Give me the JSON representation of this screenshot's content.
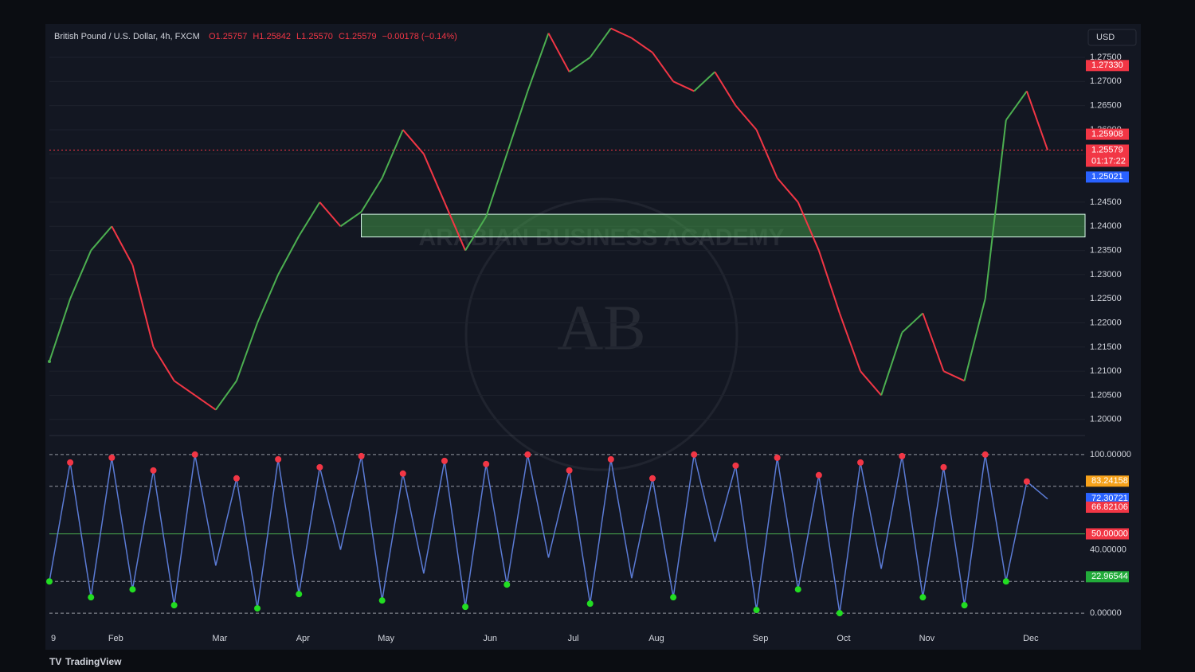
{
  "chart_data": [
    {
      "type": "line",
      "title": "British Pound / U.S. Dollar, 4h, FXCM",
      "ohlc": [
        "O1.25757",
        "H1.25842",
        "L1.25570",
        "C1.25579",
        "−0.00178 (−0.14%)"
      ],
      "currency": "USD",
      "categories": [
        "9",
        null,
        null,
        "Feb",
        null,
        null,
        null,
        null,
        "Mar",
        null,
        null,
        null,
        "Apr",
        null,
        null,
        null,
        "May",
        null,
        null,
        null,
        null,
        "Jun",
        null,
        null,
        null,
        "Jul",
        null,
        null,
        null,
        "Aug",
        null,
        null,
        null,
        null,
        "Sep",
        null,
        null,
        null,
        "Oct",
        null,
        null,
        null,
        "Nov",
        null,
        null,
        null,
        null,
        "Dec",
        null
      ],
      "values": [
        1.212,
        1.225,
        1.235,
        1.24,
        1.232,
        1.215,
        1.208,
        1.205,
        1.202,
        1.208,
        1.22,
        1.23,
        1.238,
        1.245,
        1.24,
        1.243,
        1.25,
        1.26,
        1.255,
        1.245,
        1.235,
        1.242,
        1.255,
        1.268,
        1.28,
        1.272,
        1.275,
        1.281,
        1.279,
        1.276,
        1.27,
        1.268,
        1.272,
        1.265,
        1.26,
        1.25,
        1.245,
        1.235,
        1.222,
        1.21,
        1.205,
        1.218,
        1.222,
        1.21,
        1.208,
        1.225,
        1.262,
        1.268,
        1.2558
      ],
      "up_color": "#4caf50",
      "down_color": "#f23645",
      "ylim": [
        1.197,
        1.2816
      ],
      "yticks": [
        {
          "value": 1.2,
          "label": "1.20000"
        },
        {
          "value": 1.205,
          "label": "1.20500"
        },
        {
          "value": 1.21,
          "label": "1.21000"
        },
        {
          "value": 1.215,
          "label": "1.21500"
        },
        {
          "value": 1.22,
          "label": "1.22000"
        },
        {
          "value": 1.225,
          "label": "1.22500"
        },
        {
          "value": 1.23,
          "label": "1.23000"
        },
        {
          "value": 1.235,
          "label": "1.23500"
        },
        {
          "value": 1.24,
          "label": "1.24000"
        },
        {
          "value": 1.245,
          "label": "1.24500"
        },
        {
          "value": 1.25,
          "label": "1.25000"
        },
        {
          "value": 1.255,
          "label": "1.25500"
        },
        {
          "value": 1.26,
          "label": "1.26000"
        },
        {
          "value": 1.265,
          "label": "1.26500"
        },
        {
          "value": 1.27,
          "label": "1.27000"
        },
        {
          "value": 1.275,
          "label": "1.27500"
        }
      ],
      "price_labels": [
        {
          "value": 1.2733,
          "label": "1.27330",
          "color": "#f23645"
        },
        {
          "value": 1.25908,
          "label": "1.25908",
          "color": "#f23645"
        },
        {
          "value": 1.25579,
          "label": "1.25579",
          "color": "#f23645"
        },
        {
          "value": 1.25021,
          "label": "1.25021",
          "color": "#2962ff"
        }
      ],
      "countdown": "01:17:22",
      "zone": {
        "from": 1.2378,
        "to": 1.2425,
        "color": "#4caf50"
      },
      "grid": true
    },
    {
      "type": "line",
      "values": [
        20,
        95,
        10,
        98,
        15,
        90,
        5,
        100,
        30,
        85,
        3,
        97,
        12,
        92,
        40,
        99,
        8,
        88,
        25,
        96,
        4,
        94,
        18,
        100,
        35,
        90,
        6,
        97,
        22,
        85,
        10,
        100,
        45,
        93,
        2,
        98,
        15,
        87,
        0,
        95,
        28,
        99,
        10,
        92,
        5,
        100,
        20,
        83,
        72
      ],
      "color": "#5b7bd5",
      "ylim": [
        -10,
        111.5
      ],
      "yticks": [
        {
          "value": 0,
          "label": "0.00000"
        },
        {
          "value": 40,
          "label": "40.00000"
        },
        {
          "value": 100,
          "label": "100.00000"
        }
      ],
      "levels": [
        0,
        20,
        50,
        80,
        100
      ],
      "price_labels": [
        {
          "value": 83.24158,
          "label": "83.24158",
          "color": "#f7a21b"
        },
        {
          "value": 72.30721,
          "label": "72.30721",
          "color": "#2962ff"
        },
        {
          "value": 66.82106,
          "label": "66.82106",
          "color": "#f23645"
        },
        {
          "value": 50,
          "label": "50.00000",
          "color": "#f23645"
        },
        {
          "value": 22.96544,
          "label": "22.96544",
          "color": "#22ab3a"
        }
      ]
    }
  ],
  "watermark": {
    "brand": "ARABIAN BUSINESS ACADEMY",
    "logo": "AB"
  },
  "footer": "TradingView"
}
